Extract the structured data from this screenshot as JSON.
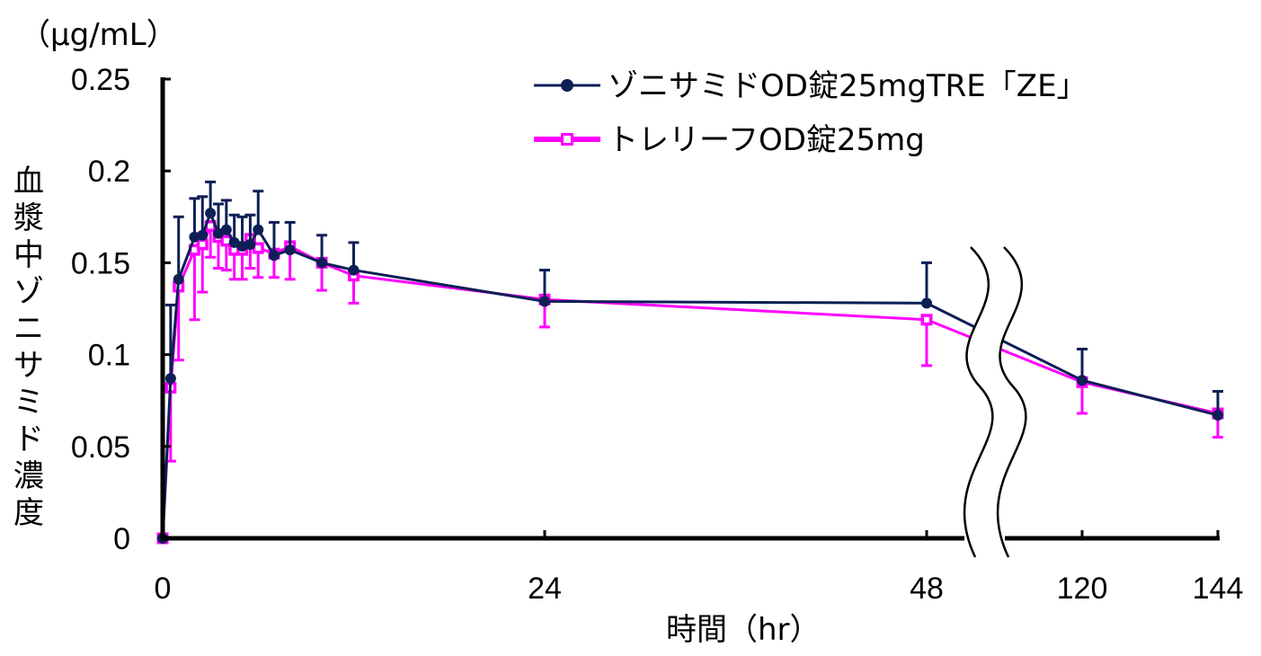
{
  "chart_data": {
    "type": "line",
    "unit_label": "（μg/mL）",
    "ylabel_chars": [
      "血",
      "漿",
      "中",
      "ゾ",
      "ニ",
      "サ",
      "ミ",
      "ド",
      "濃",
      "度"
    ],
    "xlabel": "時間（hr）",
    "yticks": [
      "0",
      "0.05",
      "0.1",
      "0.15",
      "0.2",
      "0.25"
    ],
    "ytick_values": [
      0,
      0.05,
      0.1,
      0.15,
      0.2,
      0.25
    ],
    "ylim": [
      0,
      0.25
    ],
    "xticks": [
      "0",
      "24",
      "48",
      "120",
      "144"
    ],
    "xtick_values": [
      0,
      24,
      48,
      120,
      144
    ],
    "axis_break": "between 48 and 120",
    "grid": false,
    "legend_position": "top-right",
    "series": [
      {
        "name": "ゾニサミドOD錠25mgTRE「ZE」",
        "color": "#0d1f55",
        "marker": "circle",
        "points": [
          {
            "x": 0,
            "y": 0,
            "err": 0
          },
          {
            "x": 0.5,
            "y": 0.087,
            "err": 0.04
          },
          {
            "x": 1,
            "y": 0.141,
            "err": 0.034
          },
          {
            "x": 2,
            "y": 0.164,
            "err": 0.021
          },
          {
            "x": 2.5,
            "y": 0.165,
            "err": 0.021
          },
          {
            "x": 3,
            "y": 0.177,
            "err": 0.017
          },
          {
            "x": 3.5,
            "y": 0.166,
            "err": 0.016
          },
          {
            "x": 4,
            "y": 0.168,
            "err": 0.016
          },
          {
            "x": 4.5,
            "y": 0.161,
            "err": 0.015
          },
          {
            "x": 5,
            "y": 0.159,
            "err": 0.016
          },
          {
            "x": 5.5,
            "y": 0.16,
            "err": 0.016
          },
          {
            "x": 6,
            "y": 0.168,
            "err": 0.021
          },
          {
            "x": 7,
            "y": 0.154,
            "err": 0.018
          },
          {
            "x": 8,
            "y": 0.157,
            "err": 0.015
          },
          {
            "x": 10,
            "y": 0.15,
            "err": 0.015
          },
          {
            "x": 12,
            "y": 0.146,
            "err": 0.015
          },
          {
            "x": 24,
            "y": 0.129,
            "err": 0.017
          },
          {
            "x": 48,
            "y": 0.128,
            "err": 0.022
          },
          {
            "x": 120,
            "y": 0.086,
            "err": 0.017
          },
          {
            "x": 144,
            "y": 0.067,
            "err": 0.013
          }
        ]
      },
      {
        "name": "トレリーフOD錠25mg",
        "color": "#ff00ff",
        "marker": "square",
        "points": [
          {
            "x": 0,
            "y": 0,
            "err": 0
          },
          {
            "x": 0.5,
            "y": 0.082,
            "err": 0.04
          },
          {
            "x": 1,
            "y": 0.137,
            "err": 0.04
          },
          {
            "x": 2,
            "y": 0.157,
            "err": 0.038
          },
          {
            "x": 2.5,
            "y": 0.16,
            "err": 0.026
          },
          {
            "x": 3,
            "y": 0.17,
            "err": 0.017
          },
          {
            "x": 3.5,
            "y": 0.164,
            "err": 0.017
          },
          {
            "x": 4,
            "y": 0.162,
            "err": 0.016
          },
          {
            "x": 4.5,
            "y": 0.157,
            "err": 0.016
          },
          {
            "x": 5,
            "y": 0.157,
            "err": 0.016
          },
          {
            "x": 5.5,
            "y": 0.163,
            "err": 0.016
          },
          {
            "x": 6,
            "y": 0.158,
            "err": 0.016
          },
          {
            "x": 7,
            "y": 0.155,
            "err": 0.013
          },
          {
            "x": 8,
            "y": 0.159,
            "err": 0.018
          },
          {
            "x": 10,
            "y": 0.15,
            "err": 0.015
          },
          {
            "x": 12,
            "y": 0.143,
            "err": 0.015
          },
          {
            "x": 24,
            "y": 0.13,
            "err": 0.015
          },
          {
            "x": 48,
            "y": 0.119,
            "err": 0.025
          },
          {
            "x": 120,
            "y": 0.085,
            "err": 0.017
          },
          {
            "x": 144,
            "y": 0.068,
            "err": 0.013
          }
        ]
      }
    ]
  }
}
